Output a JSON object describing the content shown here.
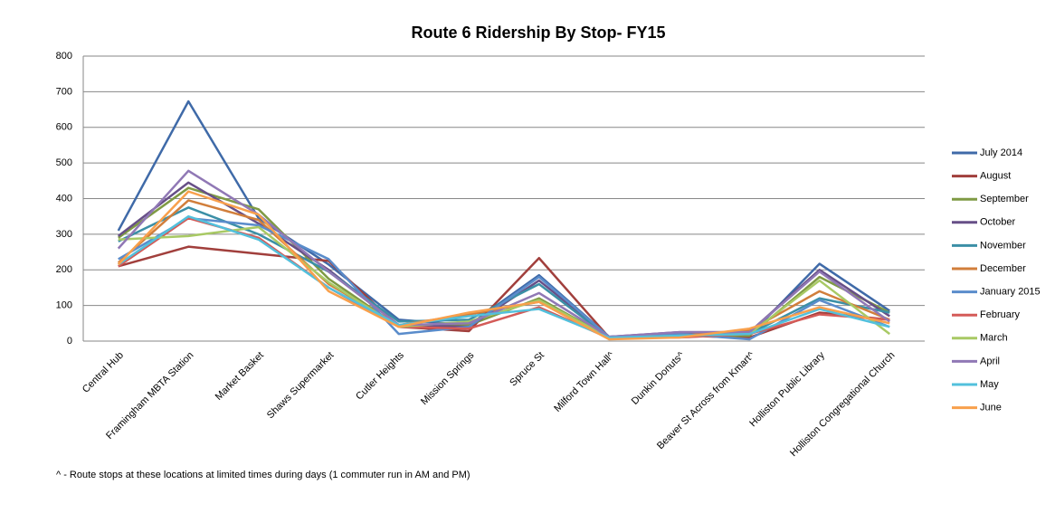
{
  "chart_data": {
    "type": "line",
    "title": "Route 6 Ridership By Stop- FY15",
    "note": "^ -  Route stops at these locations at limited times during days (1 commuter run in AM and PM)",
    "categories": [
      "Central Hub",
      "Framingham MBTA Station",
      "Market Basket",
      "Shaws Supermarket",
      "Cutler Heights",
      "Mission Springs",
      "Spruce St",
      "Milford Town Hall^",
      "Dunkin Donuts^",
      "Beaver St Across from Kmart^",
      "Holliston Public Library",
      "Holliston Congregational Church"
    ],
    "ylim": [
      0,
      800
    ],
    "yticks": [
      0,
      100,
      200,
      300,
      400,
      500,
      600,
      700,
      800
    ],
    "grid": true,
    "legend": "right",
    "series": [
      {
        "name": "July 2014",
        "color": "#3f6aa8",
        "values": [
          310,
          673,
          345,
          215,
          60,
          45,
          185,
          12,
          20,
          15,
          217,
          85
        ]
      },
      {
        "name": "August",
        "color": "#a13f3c",
        "values": [
          210,
          265,
          245,
          225,
          40,
          28,
          233,
          10,
          15,
          10,
          80,
          60
        ]
      },
      {
        "name": "September",
        "color": "#7f9a44",
        "values": [
          290,
          430,
          370,
          175,
          40,
          45,
          120,
          10,
          15,
          15,
          180,
          80
        ]
      },
      {
        "name": "October",
        "color": "#674f87",
        "values": [
          295,
          445,
          330,
          200,
          45,
          40,
          170,
          12,
          25,
          25,
          200,
          70
        ]
      },
      {
        "name": "November",
        "color": "#3b8fa6",
        "values": [
          280,
          375,
          300,
          195,
          55,
          60,
          160,
          10,
          15,
          20,
          120,
          80
        ]
      },
      {
        "name": "December",
        "color": "#d17e3b",
        "values": [
          220,
          395,
          340,
          160,
          45,
          75,
          110,
          8,
          15,
          30,
          140,
          60
        ]
      },
      {
        "name": "January 2015",
        "color": "#5a8ccb",
        "values": [
          230,
          345,
          325,
          230,
          20,
          40,
          180,
          12,
          20,
          5,
          115,
          40
        ]
      },
      {
        "name": "February",
        "color": "#d45b58",
        "values": [
          210,
          345,
          290,
          150,
          40,
          35,
          95,
          8,
          10,
          20,
          75,
          60
        ]
      },
      {
        "name": "March",
        "color": "#a8c964",
        "values": [
          285,
          295,
          320,
          165,
          40,
          55,
          115,
          10,
          15,
          20,
          170,
          20
        ]
      },
      {
        "name": "April",
        "color": "#9078b5",
        "values": [
          260,
          478,
          355,
          195,
          45,
          50,
          135,
          12,
          25,
          25,
          195,
          55
        ]
      },
      {
        "name": "May",
        "color": "#52c0dc",
        "values": [
          215,
          350,
          285,
          150,
          45,
          70,
          90,
          10,
          15,
          20,
          90,
          40
        ]
      },
      {
        "name": "June",
        "color": "#f8a04c",
        "values": [
          215,
          420,
          355,
          140,
          40,
          80,
          110,
          5,
          10,
          35,
          95,
          50
        ]
      }
    ]
  }
}
